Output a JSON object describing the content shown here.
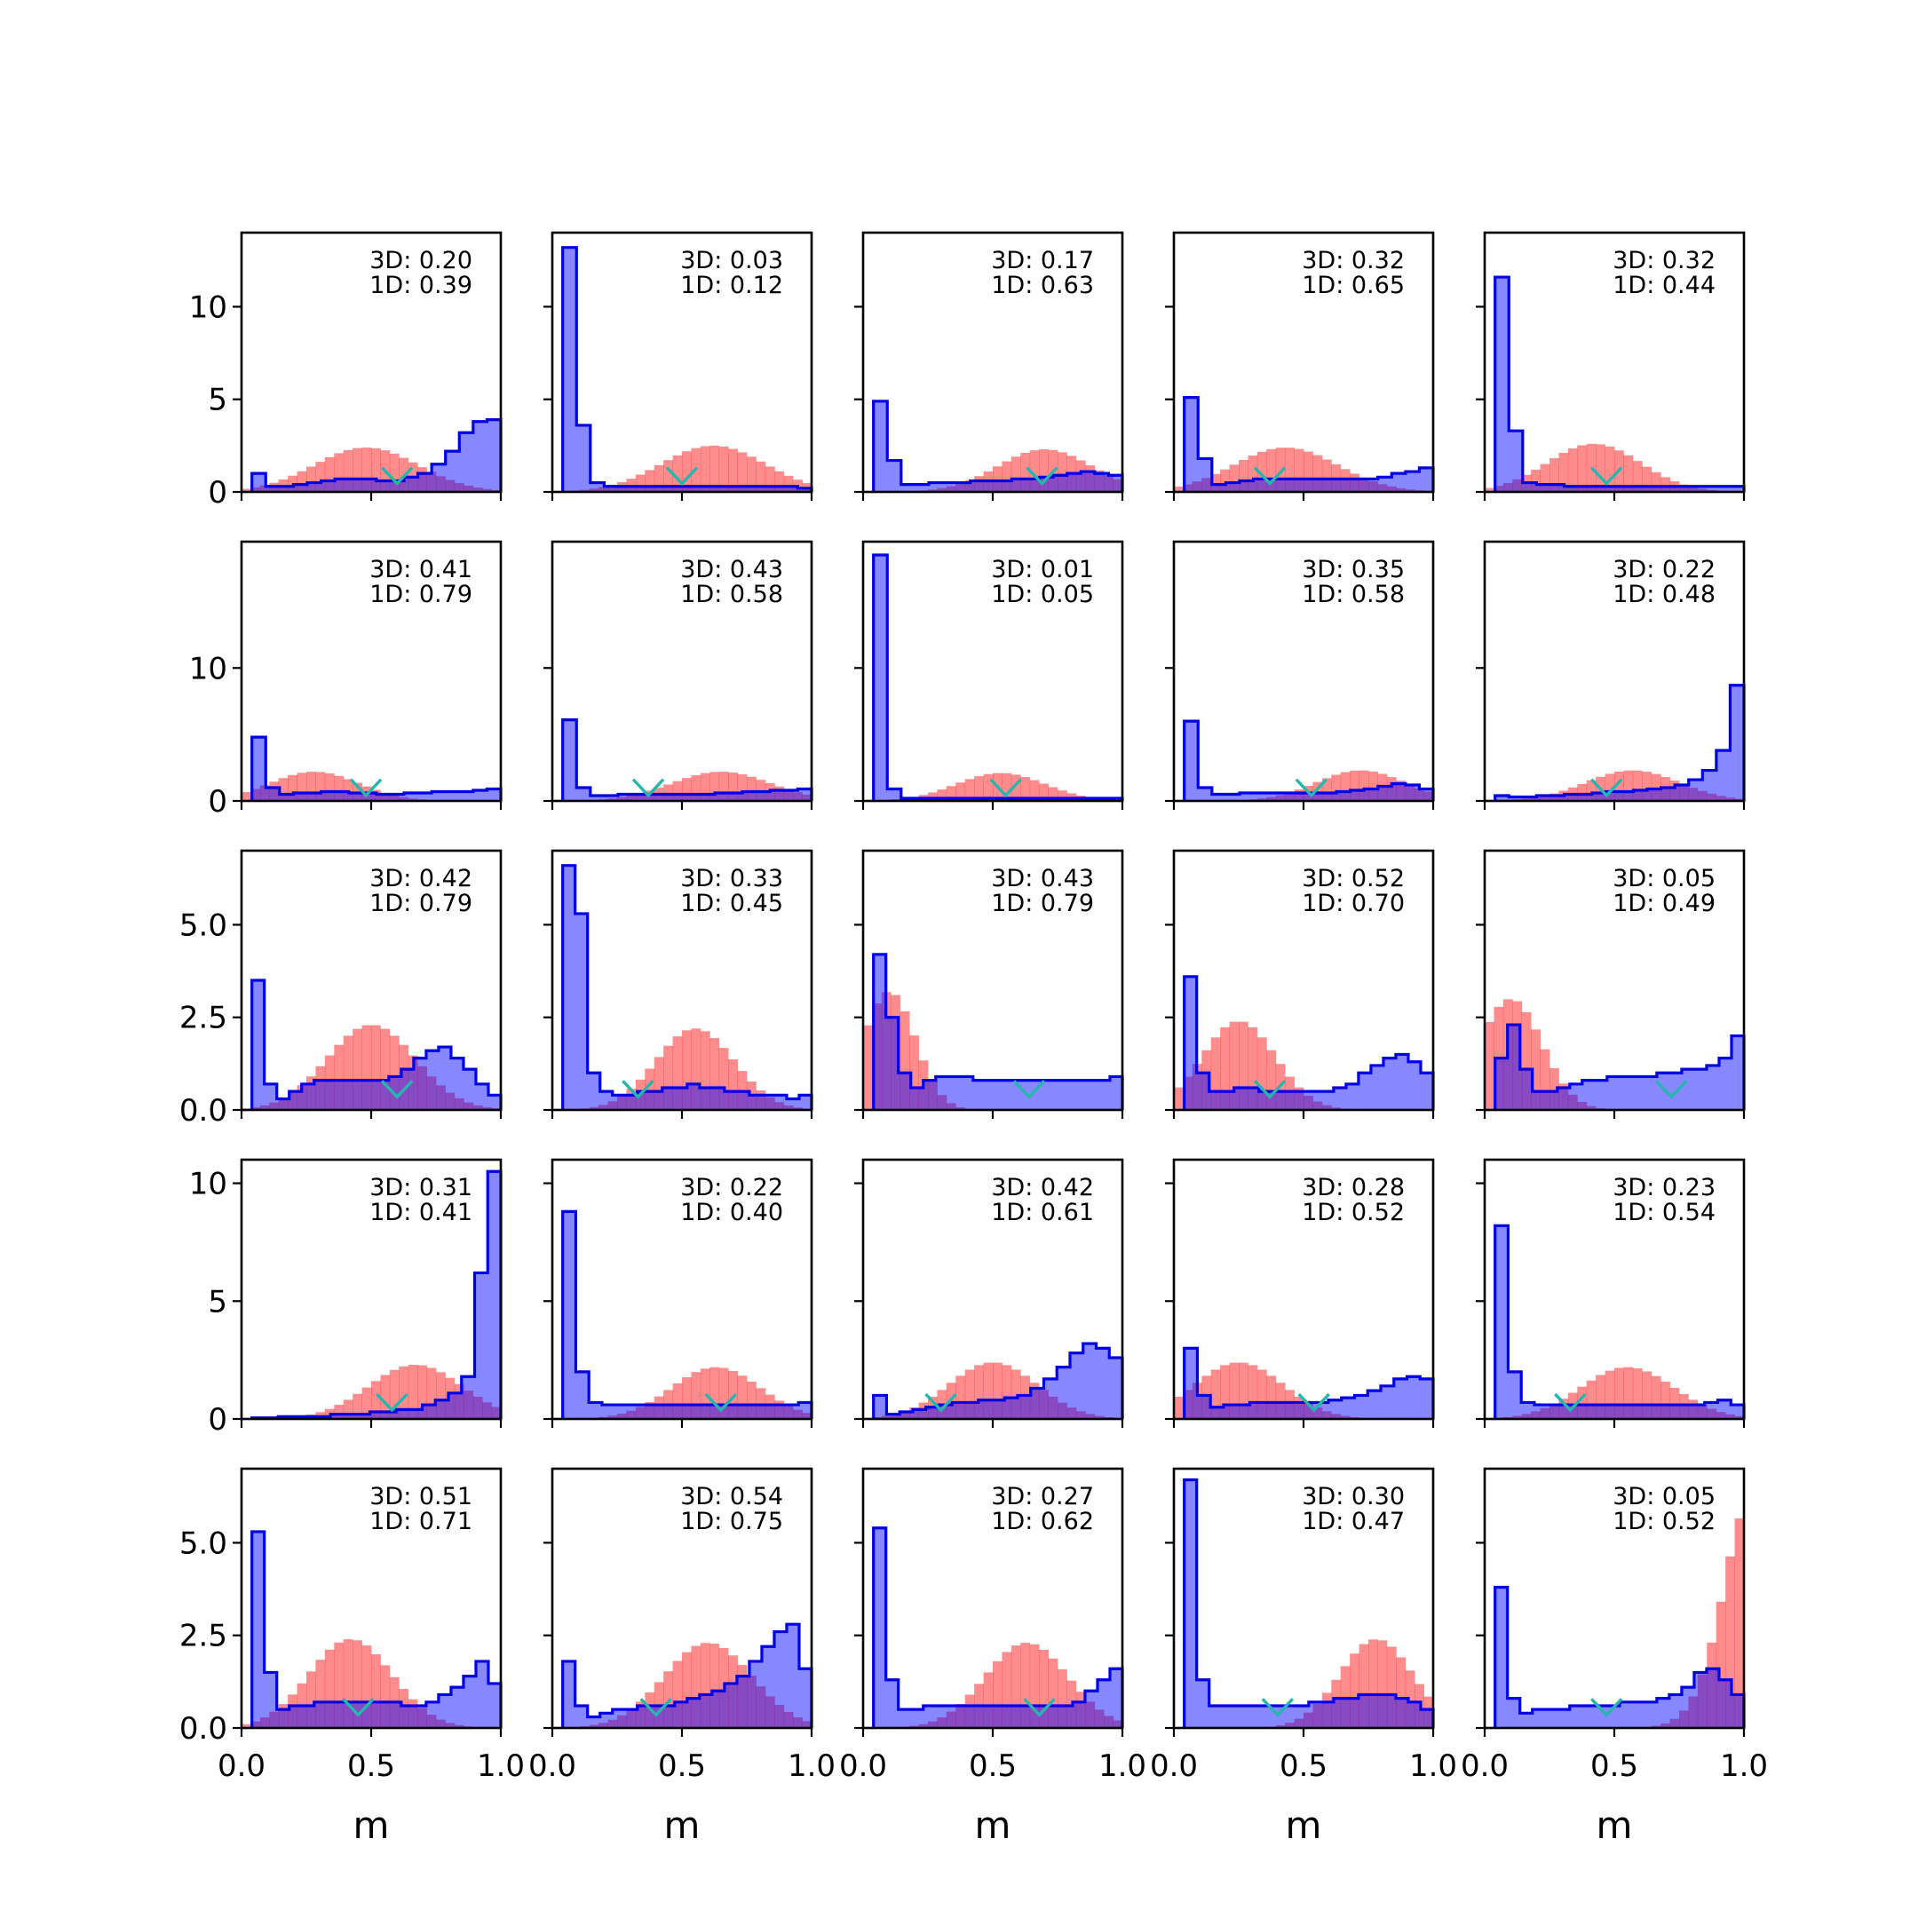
{
  "chart_data": {
    "type": "histogram-grid",
    "rows": 5,
    "cols": 5,
    "xlim": [
      0,
      1
    ],
    "xticks": [
      0.0,
      0.5,
      1.0
    ],
    "xtick_labels": [
      "0.0",
      "0.5",
      "1.0"
    ],
    "xlabel": "m",
    "colors": {
      "blue": "#0000ff",
      "red": "#ff0000",
      "marker": "#25b6b0"
    },
    "row_axes": [
      {
        "ylim": [
          0,
          14
        ],
        "yticks": [
          0,
          5,
          10
        ],
        "ytick_labels": [
          "0",
          "5",
          "10"
        ]
      },
      {
        "ylim": [
          0,
          19.5
        ],
        "yticks": [
          0,
          10
        ],
        "ytick_labels": [
          "0",
          "10"
        ]
      },
      {
        "ylim": [
          0,
          7
        ],
        "yticks": [
          0,
          2.5,
          5
        ],
        "ytick_labels": [
          "0.0",
          "2.5",
          "5.0"
        ]
      },
      {
        "ylim": [
          0,
          11
        ],
        "yticks": [
          0,
          5,
          10
        ],
        "ytick_labels": [
          "0",
          "5",
          "10"
        ]
      },
      {
        "ylim": [
          0,
          7
        ],
        "yticks": [
          0,
          2.5,
          5
        ],
        "ytick_labels": [
          "0.0",
          "2.5",
          "5.0"
        ]
      }
    ],
    "panels": [
      {
        "label_3d": "3D: 0.20",
        "label_1d": "1D: 0.39",
        "marker_x": 0.6,
        "marker_y": 0.55,
        "blue": [
          1.0,
          0.3,
          0.3,
          0.4,
          0.5,
          0.6,
          0.7,
          0.7,
          0.7,
          0.6,
          0.6,
          0.8,
          1.0,
          1.5,
          2.2,
          3.2,
          3.8,
          3.9
        ],
        "red_center": 0.48,
        "red_width": 0.2,
        "red_peak": 2.4
      },
      {
        "label_3d": "3D: 0.03",
        "label_1d": "1D: 0.12",
        "marker_x": 0.5,
        "marker_y": 0.55,
        "blue": [
          13.2,
          3.6,
          0.5,
          0.3,
          0.3,
          0.3,
          0.3,
          0.3,
          0.3,
          0.3,
          0.3,
          0.3,
          0.3,
          0.3,
          0.3,
          0.3,
          0.3,
          0.2
        ],
        "red_center": 0.62,
        "red_width": 0.2,
        "red_peak": 2.5
      },
      {
        "label_3d": "3D: 0.17",
        "label_1d": "1D: 0.63",
        "marker_x": 0.69,
        "marker_y": 0.55,
        "blue": [
          4.9,
          1.7,
          0.4,
          0.4,
          0.5,
          0.5,
          0.5,
          0.6,
          0.6,
          0.6,
          0.7,
          0.7,
          0.8,
          0.9,
          1.0,
          1.1,
          1.0,
          0.9
        ],
        "red_center": 0.7,
        "red_width": 0.18,
        "red_peak": 2.3
      },
      {
        "label_3d": "3D: 0.32",
        "label_1d": "1D: 0.65",
        "marker_x": 0.37,
        "marker_y": 0.55,
        "blue": [
          5.1,
          1.8,
          0.4,
          0.5,
          0.6,
          0.7,
          0.7,
          0.7,
          0.7,
          0.7,
          0.7,
          0.7,
          0.7,
          0.7,
          0.8,
          1.0,
          1.1,
          1.3
        ],
        "red_center": 0.43,
        "red_width": 0.2,
        "red_peak": 2.4
      },
      {
        "label_3d": "3D: 0.32",
        "label_1d": "1D: 0.44",
        "marker_x": 0.47,
        "marker_y": 0.55,
        "blue": [
          11.6,
          3.3,
          0.5,
          0.4,
          0.4,
          0.3,
          0.3,
          0.3,
          0.3,
          0.3,
          0.3,
          0.3,
          0.3,
          0.3,
          0.3,
          0.3,
          0.3,
          0.3
        ],
        "red_center": 0.42,
        "red_width": 0.18,
        "red_peak": 2.6
      },
      {
        "label_3d": "3D: 0.41",
        "label_1d": "1D: 0.79",
        "marker_x": 0.48,
        "marker_y": 0.55,
        "blue": [
          4.8,
          1.0,
          0.5,
          0.6,
          0.6,
          0.7,
          0.7,
          0.6,
          0.6,
          0.5,
          0.5,
          0.6,
          0.6,
          0.7,
          0.7,
          0.7,
          0.8,
          0.9
        ],
        "red_center": 0.28,
        "red_width": 0.17,
        "red_peak": 2.2
      },
      {
        "label_3d": "3D: 0.43",
        "label_1d": "1D: 0.58",
        "marker_x": 0.37,
        "marker_y": 0.55,
        "blue": [
          6.1,
          1.0,
          0.4,
          0.4,
          0.5,
          0.5,
          0.5,
          0.5,
          0.5,
          0.5,
          0.5,
          0.6,
          0.6,
          0.7,
          0.7,
          0.8,
          0.8,
          0.9
        ],
        "red_center": 0.65,
        "red_width": 0.19,
        "red_peak": 2.2
      },
      {
        "label_3d": "3D: 0.01",
        "label_1d": "1D: 0.05",
        "marker_x": 0.55,
        "marker_y": 0.55,
        "blue": [
          18.5,
          0.9,
          0.2,
          0.2,
          0.2,
          0.2,
          0.2,
          0.2,
          0.2,
          0.2,
          0.2,
          0.2,
          0.2,
          0.2,
          0.2,
          0.2,
          0.2,
          0.2
        ],
        "red_center": 0.53,
        "red_width": 0.17,
        "red_peak": 2.1
      },
      {
        "label_3d": "3D: 0.35",
        "label_1d": "1D: 0.58",
        "marker_x": 0.53,
        "marker_y": 0.55,
        "blue": [
          6.0,
          1.0,
          0.5,
          0.5,
          0.6,
          0.6,
          0.6,
          0.6,
          0.6,
          0.6,
          0.6,
          0.7,
          0.8,
          0.9,
          1.1,
          1.3,
          1.2,
          0.9
        ],
        "red_center": 0.72,
        "red_width": 0.17,
        "red_peak": 2.3
      },
      {
        "label_3d": "3D: 0.22",
        "label_1d": "1D: 0.48",
        "marker_x": 0.47,
        "marker_y": 0.55,
        "blue": [
          0.4,
          0.3,
          0.3,
          0.4,
          0.4,
          0.5,
          0.5,
          0.6,
          0.7,
          0.7,
          0.8,
          0.9,
          1.0,
          1.2,
          1.6,
          2.3,
          3.8,
          8.7
        ],
        "red_center": 0.57,
        "red_width": 0.18,
        "red_peak": 2.3
      },
      {
        "label_3d": "3D: 0.42",
        "label_1d": "1D: 0.79",
        "marker_x": 0.6,
        "marker_y": 0.4,
        "blue": [
          3.5,
          0.7,
          0.3,
          0.5,
          0.7,
          0.8,
          0.8,
          0.8,
          0.8,
          0.8,
          0.8,
          0.9,
          1.1,
          1.4,
          1.6,
          1.7,
          1.4,
          1.1,
          0.7,
          0.4
        ],
        "red_center": 0.5,
        "red_width": 0.17,
        "red_peak": 2.3
      },
      {
        "label_3d": "3D: 0.33",
        "label_1d": "1D: 0.45",
        "marker_x": 0.33,
        "marker_y": 0.4,
        "blue": [
          6.6,
          5.3,
          1.0,
          0.5,
          0.4,
          0.4,
          0.5,
          0.5,
          0.6,
          0.6,
          0.7,
          0.6,
          0.6,
          0.5,
          0.5,
          0.4,
          0.4,
          0.4,
          0.3,
          0.4
        ],
        "red_center": 0.55,
        "red_width": 0.15,
        "red_peak": 2.2
      },
      {
        "label_3d": "3D: 0.43",
        "label_1d": "1D: 0.79",
        "marker_x": 0.64,
        "marker_y": 0.4,
        "blue": [
          4.2,
          2.5,
          1.0,
          0.6,
          0.8,
          0.9,
          0.9,
          0.9,
          0.8,
          0.8,
          0.8,
          0.8,
          0.8,
          0.8,
          0.8,
          0.8,
          0.8,
          0.8,
          0.8,
          0.9
        ],
        "red_center": 0.1,
        "red_width": 0.1,
        "red_peak": 3.2
      },
      {
        "label_3d": "3D: 0.52",
        "label_1d": "1D: 0.70",
        "marker_x": 0.37,
        "marker_y": 0.4,
        "blue": [
          3.6,
          1.0,
          0.5,
          0.5,
          0.6,
          0.6,
          0.5,
          0.5,
          0.5,
          0.5,
          0.5,
          0.5,
          0.6,
          0.7,
          1.0,
          1.2,
          1.4,
          1.5,
          1.3,
          1.0
        ],
        "red_center": 0.25,
        "red_width": 0.14,
        "red_peak": 2.4
      },
      {
        "label_3d": "3D: 0.05",
        "label_1d": "1D: 0.49",
        "marker_x": 0.72,
        "marker_y": 0.4,
        "blue": [
          1.4,
          2.3,
          1.1,
          0.5,
          0.5,
          0.6,
          0.7,
          0.8,
          0.8,
          0.9,
          0.9,
          0.9,
          0.9,
          1.0,
          1.0,
          1.1,
          1.1,
          1.2,
          1.4,
          2.0
        ],
        "red_center": 0.1,
        "red_width": 0.12,
        "red_peak": 3.0
      },
      {
        "label_3d": "3D: 0.31",
        "label_1d": "1D: 0.41",
        "marker_x": 0.58,
        "marker_y": 0.45,
        "blue": [
          0.05,
          0.05,
          0.1,
          0.1,
          0.1,
          0.1,
          0.2,
          0.2,
          0.2,
          0.3,
          0.3,
          0.4,
          0.4,
          0.6,
          0.8,
          1.1,
          1.8,
          6.2,
          10.5
        ],
        "red_center": 0.67,
        "red_width": 0.18,
        "red_peak": 2.3
      },
      {
        "label_3d": "3D: 0.22",
        "label_1d": "1D: 0.40",
        "marker_x": 0.65,
        "marker_y": 0.45,
        "blue": [
          8.8,
          2.0,
          0.7,
          0.6,
          0.6,
          0.6,
          0.6,
          0.6,
          0.6,
          0.6,
          0.6,
          0.6,
          0.6,
          0.6,
          0.6,
          0.6,
          0.6,
          0.6,
          0.7
        ],
        "red_center": 0.63,
        "red_width": 0.17,
        "red_peak": 2.2
      },
      {
        "label_3d": "3D: 0.42",
        "label_1d": "1D: 0.61",
        "marker_x": 0.3,
        "marker_y": 0.45,
        "blue": [
          1.0,
          0.2,
          0.3,
          0.4,
          0.5,
          0.6,
          0.7,
          0.7,
          0.8,
          0.8,
          0.9,
          1.0,
          1.3,
          1.7,
          2.2,
          2.8,
          3.2,
          3.0,
          2.6
        ],
        "red_center": 0.5,
        "red_width": 0.17,
        "red_peak": 2.4
      },
      {
        "label_3d": "3D: 0.28",
        "label_1d": "1D: 0.52",
        "marker_x": 0.54,
        "marker_y": 0.45,
        "blue": [
          3.0,
          1.0,
          0.5,
          0.6,
          0.6,
          0.7,
          0.7,
          0.7,
          0.7,
          0.7,
          0.7,
          0.8,
          0.9,
          1.0,
          1.2,
          1.4,
          1.7,
          1.8,
          1.7
        ],
        "red_center": 0.25,
        "red_width": 0.17,
        "red_peak": 2.4
      },
      {
        "label_3d": "3D: 0.23",
        "label_1d": "1D: 0.54",
        "marker_x": 0.33,
        "marker_y": 0.45,
        "blue": [
          8.2,
          2.0,
          0.7,
          0.6,
          0.6,
          0.6,
          0.6,
          0.6,
          0.6,
          0.6,
          0.6,
          0.6,
          0.6,
          0.6,
          0.6,
          0.6,
          0.7,
          0.8,
          0.6
        ],
        "red_center": 0.55,
        "red_width": 0.18,
        "red_peak": 2.2
      },
      {
        "label_3d": "3D: 0.51",
        "label_1d": "1D: 0.71",
        "marker_x": 0.45,
        "marker_y": 0.4,
        "blue": [
          5.3,
          1.5,
          0.5,
          0.6,
          0.6,
          0.7,
          0.7,
          0.7,
          0.7,
          0.7,
          0.7,
          0.7,
          0.6,
          0.6,
          0.7,
          0.9,
          1.1,
          1.4,
          1.8,
          1.2
        ],
        "red_center": 0.42,
        "red_width": 0.16,
        "red_peak": 2.4
      },
      {
        "label_3d": "3D: 0.54",
        "label_1d": "1D: 0.75",
        "marker_x": 0.4,
        "marker_y": 0.4,
        "blue": [
          1.8,
          0.6,
          0.3,
          0.4,
          0.5,
          0.5,
          0.6,
          0.6,
          0.6,
          0.7,
          0.8,
          0.9,
          1.0,
          1.2,
          1.4,
          1.8,
          2.2,
          2.6,
          2.8,
          1.6
        ],
        "red_center": 0.6,
        "red_width": 0.17,
        "red_peak": 2.3
      },
      {
        "label_3d": "3D: 0.27",
        "label_1d": "1D: 0.62",
        "marker_x": 0.68,
        "marker_y": 0.4,
        "blue": [
          5.4,
          1.3,
          0.5,
          0.5,
          0.6,
          0.6,
          0.6,
          0.6,
          0.6,
          0.6,
          0.6,
          0.6,
          0.6,
          0.6,
          0.6,
          0.6,
          0.7,
          1.0,
          1.3,
          1.6
        ],
        "red_center": 0.63,
        "red_width": 0.16,
        "red_peak": 2.3
      },
      {
        "label_3d": "3D: 0.30",
        "label_1d": "1D: 0.47",
        "marker_x": 0.4,
        "marker_y": 0.4,
        "blue": [
          6.7,
          1.3,
          0.6,
          0.6,
          0.6,
          0.6,
          0.6,
          0.6,
          0.6,
          0.6,
          0.7,
          0.7,
          0.8,
          0.8,
          0.9,
          0.9,
          0.9,
          0.8,
          0.7,
          0.5
        ],
        "red_center": 0.78,
        "red_width": 0.14,
        "red_peak": 2.4
      },
      {
        "label_3d": "3D: 0.05",
        "label_1d": "1D: 0.52",
        "marker_x": 0.47,
        "marker_y": 0.4,
        "blue": [
          3.8,
          0.8,
          0.4,
          0.5,
          0.5,
          0.5,
          0.6,
          0.6,
          0.6,
          0.6,
          0.7,
          0.7,
          0.7,
          0.8,
          0.9,
          1.1,
          1.5,
          1.6,
          1.3,
          0.9
        ],
        "red_shape": "rising",
        "red_peak": 5.9
      }
    ]
  }
}
